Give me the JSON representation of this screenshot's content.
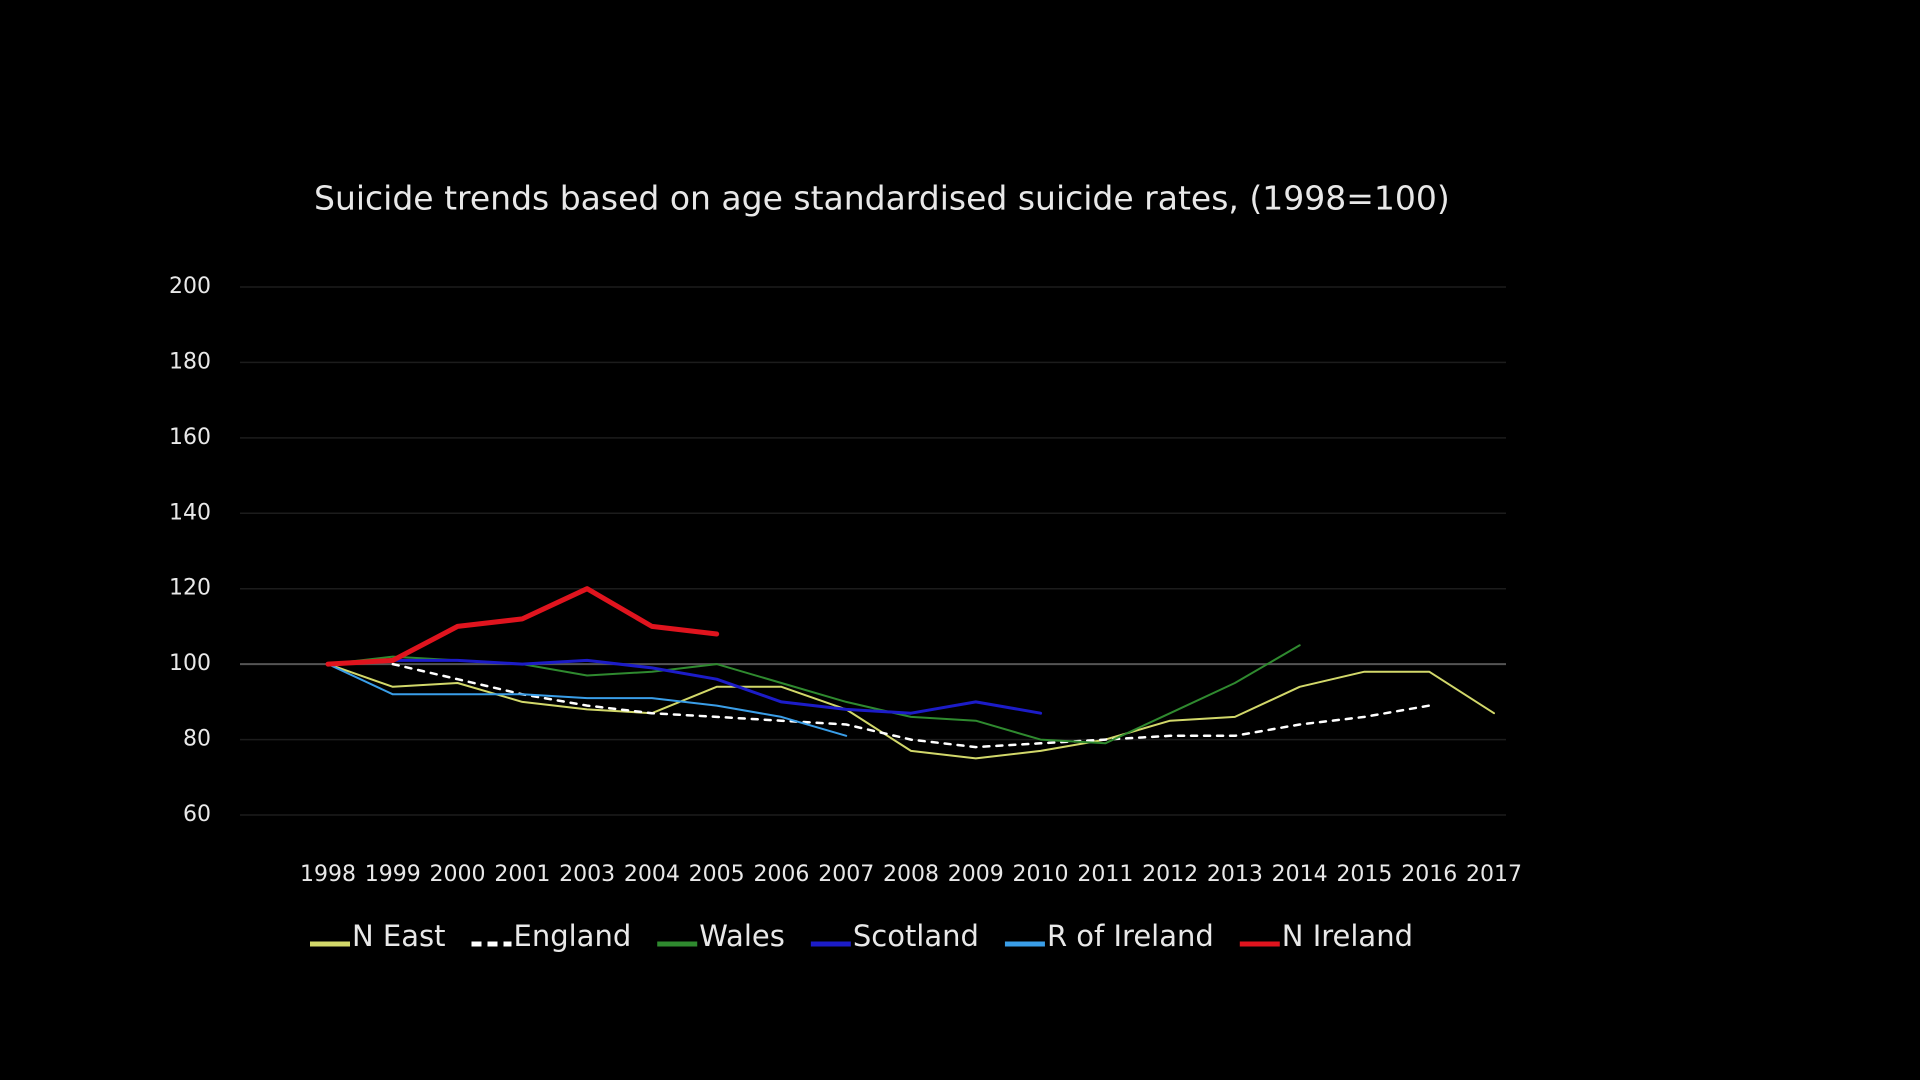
{
  "chart_data": {
    "type": "line",
    "title": "Suicide trends based on age standardised suicide rates, (1998=100)",
    "categories": [
      "1998",
      "1999",
      "2000",
      "2001",
      "2003",
      "2004",
      "2005",
      "2006",
      "2007",
      "2008",
      "2009",
      "2010",
      "2011",
      "2012",
      "2013",
      "2014",
      "2015",
      "2016",
      "2017"
    ],
    "series": [
      {
        "name": "N East",
        "color": "#d2d86a",
        "line_width": 2,
        "values": [
          100,
          94,
          95,
          90,
          88,
          87,
          94,
          94,
          88,
          77,
          75,
          77,
          80,
          85,
          86,
          94,
          98,
          98,
          87
        ]
      },
      {
        "name": "England",
        "color": "#ffffff",
        "dashed": true,
        "line_width": 2.5,
        "values": [
          null,
          100,
          96,
          92,
          89,
          87,
          86,
          85,
          84,
          80,
          78,
          79,
          80,
          81,
          81,
          84,
          86,
          89,
          null
        ]
      },
      {
        "name": "Wales",
        "color": "#2f8a2f",
        "line_width": 2,
        "values": [
          100,
          102,
          101,
          100,
          97,
          98,
          100,
          95,
          90,
          86,
          85,
          80,
          79,
          87,
          95,
          105,
          null,
          null,
          null
        ]
      },
      {
        "name": "Scotland",
        "color": "#1c1cc8",
        "line_width": 3,
        "values": [
          100,
          101,
          101,
          100,
          101,
          99,
          96,
          90,
          88,
          87,
          90,
          87,
          null,
          null,
          null,
          null,
          null,
          null,
          null
        ]
      },
      {
        "name": "R of Ireland",
        "color": "#3a9ee8",
        "line_width": 2,
        "values": [
          100,
          92,
          92,
          92,
          91,
          91,
          89,
          86,
          81,
          null,
          null,
          null,
          null,
          null,
          null,
          null,
          null,
          null,
          null
        ]
      },
      {
        "name": "N Ireland",
        "color": "#e0141e",
        "line_width": 5,
        "values": [
          100,
          101,
          110,
          112,
          120,
          110,
          108,
          null,
          null,
          null,
          null,
          null,
          null,
          null,
          null,
          null,
          null,
          null,
          null
        ]
      }
    ],
    "ylim": [
      60,
      200
    ],
    "yticks": [
      60,
      80,
      100,
      120,
      140,
      160,
      180,
      200
    ],
    "grid": true,
    "hline": 100,
    "legend": "bottom"
  }
}
